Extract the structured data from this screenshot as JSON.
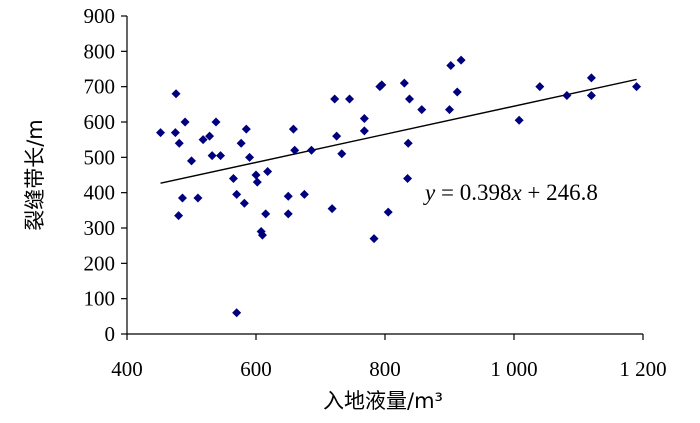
{
  "chart_data": {
    "type": "scatter",
    "xlabel": "入地液量/m³",
    "ylabel": "裂缝带长/m",
    "xlim": [
      400,
      1200
    ],
    "ylim": [
      0,
      900
    ],
    "xticks": [
      400,
      600,
      800,
      1000,
      1200
    ],
    "xtick_labels": [
      "400",
      "600",
      "800",
      "1 000",
      "1 200"
    ],
    "yticks": [
      0,
      100,
      200,
      300,
      400,
      500,
      600,
      700,
      800,
      900
    ],
    "ytick_labels": [
      "0",
      "100",
      "200",
      "300",
      "400",
      "500",
      "600",
      "700",
      "800",
      "900"
    ],
    "grid": false,
    "marker": "diamond",
    "point_color": "#00007f",
    "points": [
      [
        452,
        570
      ],
      [
        475,
        570
      ],
      [
        476,
        680
      ],
      [
        480,
        335
      ],
      [
        481,
        540
      ],
      [
        486,
        385
      ],
      [
        490,
        600
      ],
      [
        500,
        490
      ],
      [
        510,
        385
      ],
      [
        518,
        550
      ],
      [
        528,
        560
      ],
      [
        532,
        505
      ],
      [
        538,
        600
      ],
      [
        545,
        505
      ],
      [
        565,
        440
      ],
      [
        570,
        395
      ],
      [
        570,
        60
      ],
      [
        577,
        540
      ],
      [
        582,
        370
      ],
      [
        585,
        580
      ],
      [
        590,
        500
      ],
      [
        600,
        450
      ],
      [
        602,
        430
      ],
      [
        608,
        290
      ],
      [
        610,
        280
      ],
      [
        615,
        340
      ],
      [
        618,
        460
      ],
      [
        650,
        390
      ],
      [
        650,
        340
      ],
      [
        658,
        580
      ],
      [
        660,
        520
      ],
      [
        675,
        395
      ],
      [
        686,
        520
      ],
      [
        718,
        355
      ],
      [
        722,
        665
      ],
      [
        725,
        560
      ],
      [
        733,
        510
      ],
      [
        745,
        665
      ],
      [
        768,
        575
      ],
      [
        768,
        610
      ],
      [
        783,
        270
      ],
      [
        792,
        700
      ],
      [
        795,
        705
      ],
      [
        805,
        345
      ],
      [
        830,
        710
      ],
      [
        835,
        440
      ],
      [
        836,
        540
      ],
      [
        838,
        665
      ],
      [
        857,
        635
      ],
      [
        900,
        635
      ],
      [
        902,
        760
      ],
      [
        912,
        685
      ],
      [
        918,
        775
      ],
      [
        1008,
        605
      ],
      [
        1040,
        700
      ],
      [
        1082,
        675
      ],
      [
        1120,
        675
      ],
      [
        1120,
        725
      ],
      [
        1190,
        700
      ]
    ],
    "trendline": {
      "slope": 0.398,
      "intercept": 246.8,
      "x_range": [
        452,
        1190
      ]
    },
    "annotations": [
      {
        "text_parts": [
          "y",
          " = 0.398",
          "x",
          " + 246.8"
        ]
      }
    ]
  }
}
